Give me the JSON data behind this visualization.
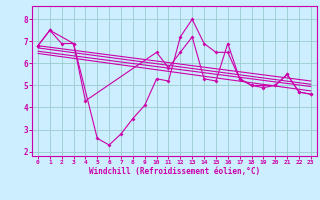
{
  "background_color": "#cceeff",
  "grid_color": "#99cccc",
  "line_color": "#cc00aa",
  "xlabel": "Windchill (Refroidissement éolien,°C)",
  "xlim": [
    -0.5,
    23.5
  ],
  "ylim": [
    1.8,
    8.6
  ],
  "yticks": [
    2,
    3,
    4,
    5,
    6,
    7,
    8
  ],
  "xticks": [
    0,
    1,
    2,
    3,
    4,
    5,
    6,
    7,
    8,
    9,
    10,
    11,
    12,
    13,
    14,
    15,
    16,
    17,
    18,
    19,
    20,
    21,
    22,
    23
  ],
  "series1_x": [
    0,
    1,
    3,
    5,
    6,
    7,
    8,
    9,
    10,
    11,
    12,
    13,
    14,
    15,
    16,
    17,
    18,
    19,
    20,
    21,
    22,
    23
  ],
  "series1_y": [
    6.8,
    7.5,
    6.9,
    2.6,
    2.3,
    2.8,
    3.5,
    4.1,
    5.3,
    5.2,
    7.2,
    8.0,
    6.9,
    6.5,
    6.5,
    5.3,
    5.0,
    4.9,
    5.0,
    5.5,
    4.7,
    4.6
  ],
  "series2_x": [
    0,
    1,
    2,
    3,
    4,
    10,
    11,
    12,
    13,
    14,
    15,
    16,
    17,
    18,
    19,
    20,
    21,
    22,
    23
  ],
  "series2_y": [
    6.8,
    7.5,
    6.9,
    6.9,
    4.3,
    6.5,
    5.8,
    6.5,
    7.2,
    5.3,
    5.2,
    6.9,
    5.3,
    5.0,
    5.0,
    5.0,
    5.5,
    4.7,
    4.6
  ],
  "trend1_x": [
    0,
    23
  ],
  "trend1_y": [
    6.8,
    5.2
  ],
  "trend2_x": [
    0,
    23
  ],
  "trend2_y": [
    6.7,
    5.05
  ],
  "trend3_x": [
    0,
    23
  ],
  "trend3_y": [
    6.55,
    4.95
  ],
  "trend4_x": [
    0,
    23
  ],
  "trend4_y": [
    6.45,
    4.75
  ]
}
